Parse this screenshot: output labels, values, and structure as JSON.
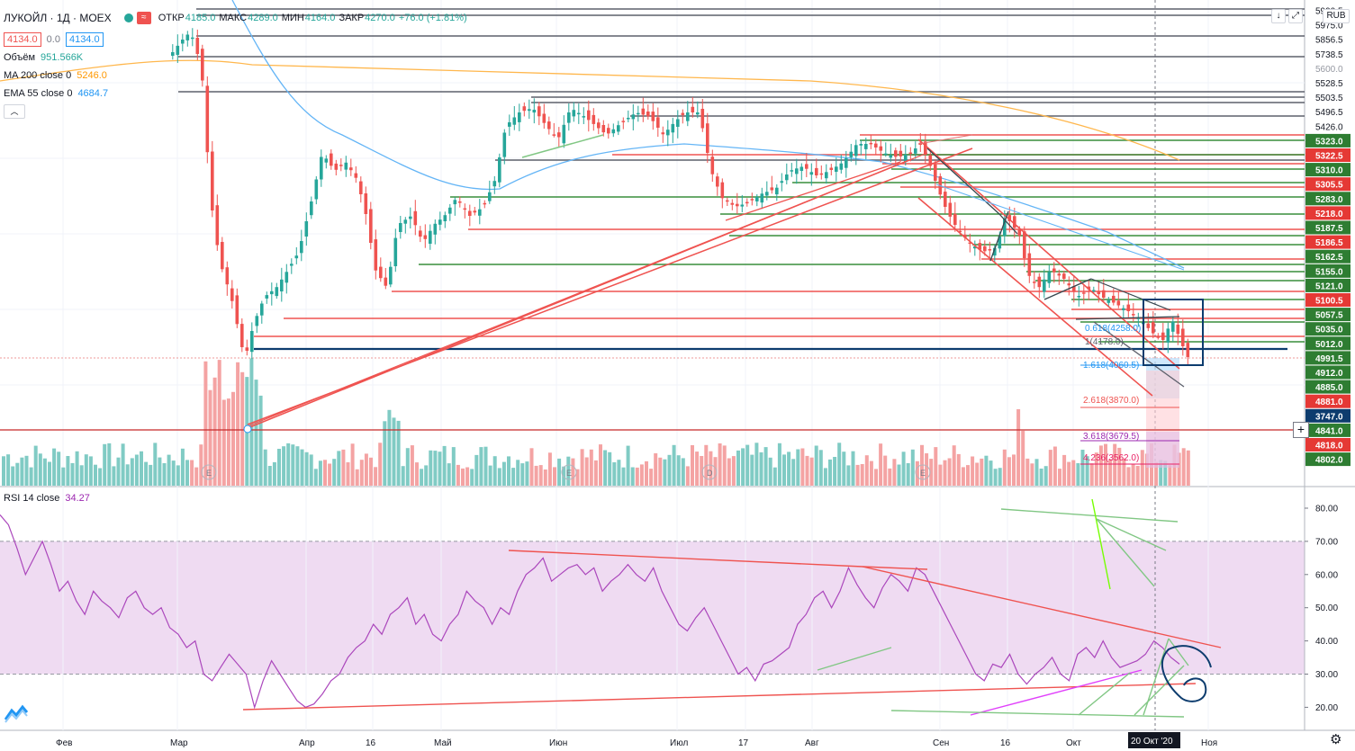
{
  "symbol": {
    "name": "ЛУКОЙЛ",
    "interval": "1Д",
    "exchange": "MOEX",
    "wave_icon": "≈"
  },
  "ohlc": [
    {
      "key": "ОТКР",
      "value": "4185.0"
    },
    {
      "key": "МАКС",
      "value": "4289.0"
    },
    {
      "key": "МИН",
      "value": "4164.0"
    },
    {
      "key": "ЗАКР",
      "value": "4270.0"
    },
    {
      "key": "",
      "value": "+76.0 (+1.81%)"
    }
  ],
  "bid": "4134.0",
  "spread": "0.0",
  "ask": "4134.0",
  "indicators": {
    "volume": {
      "label": "Объём",
      "value": "951.566K",
      "color": "#26a69a"
    },
    "ma200": {
      "label": "MA 200 close 0",
      "value": "5246.0",
      "color": "#ff9800"
    },
    "ema55": {
      "label": "EMA 55 close 0",
      "value": "4684.7",
      "color": "#2196f3"
    }
  },
  "rsi": {
    "label": "RSI 14 close",
    "value": "34.27",
    "color": "#9c27b0",
    "upper_band": "70",
    "lower_band": "30"
  },
  "currency": "RUB",
  "toolbar": {
    "arrow_down_icon": "↓",
    "fullscreen_icon": "⤢",
    "collapse_icon": "︿",
    "plus_icon": "+",
    "gear_icon": "⚙"
  },
  "price_axis_labels": [
    {
      "text": "5990.5",
      "kind": "plain"
    },
    {
      "text": "5975.0",
      "kind": "plain"
    },
    {
      "text": "5856.5",
      "kind": "plain"
    },
    {
      "text": "5738.5",
      "kind": "plain"
    },
    {
      "text": "5600.0",
      "kind": "grid"
    },
    {
      "text": "5528.5",
      "kind": "plain"
    },
    {
      "text": "5503.5",
      "kind": "plain"
    },
    {
      "text": "5496.5",
      "kind": "plain"
    },
    {
      "text": "5426.0",
      "kind": "plain"
    },
    {
      "text": "5323.0",
      "kind": "green"
    },
    {
      "text": "5322.5",
      "kind": "red"
    },
    {
      "text": "5310.0",
      "kind": "green"
    },
    {
      "text": "5305.5",
      "kind": "red"
    },
    {
      "text": "5283.0",
      "kind": "green"
    },
    {
      "text": "5218.0",
      "kind": "red"
    },
    {
      "text": "5187.5",
      "kind": "green"
    },
    {
      "text": "5186.5",
      "kind": "red"
    },
    {
      "text": "5162.5",
      "kind": "green"
    },
    {
      "text": "5155.0",
      "kind": "green"
    },
    {
      "text": "5121.0",
      "kind": "green"
    },
    {
      "text": "5100.5",
      "kind": "red"
    },
    {
      "text": "5057.5",
      "kind": "green"
    },
    {
      "text": "5035.0",
      "kind": "green"
    },
    {
      "text": "5012.0",
      "kind": "green"
    },
    {
      "text": "4991.5",
      "kind": "green"
    },
    {
      "text": "4912.0",
      "kind": "green"
    },
    {
      "text": "4885.0",
      "kind": "green"
    },
    {
      "text": "4881.0",
      "kind": "red"
    },
    {
      "text": "3747.0",
      "kind": "navy"
    },
    {
      "text": "4841.0",
      "kind": "green"
    },
    {
      "text": "4818.0",
      "kind": "red"
    },
    {
      "text": "4802.0",
      "kind": "green"
    }
  ],
  "rsi_axis_labels": [
    "80.00",
    "70.00",
    "60.00",
    "50.00",
    "40.00",
    "30.00",
    "20.00"
  ],
  "time_axis_labels": [
    "Фев",
    "Мар",
    "Апр",
    "16",
    "Май",
    "Июн",
    "Июл",
    "17",
    "Авг",
    "Сен",
    "16",
    "Окт",
    "Ноя"
  ],
  "crosshair_date": "20 Окт '20",
  "fib_labels": [
    "1.618(4060.5)",
    "2.618(3870.0)",
    "3.618(3679.5)",
    "4.236(3562.0)",
    "0.618(4258.0)",
    "1(4178.0)"
  ],
  "earnings_marker": "E",
  "dividend_marker": "D",
  "colors": {
    "up": "#26a69a",
    "down": "#ef5350",
    "rsi_band": "#e1bee7",
    "navy": "#0d3c6e"
  }
}
